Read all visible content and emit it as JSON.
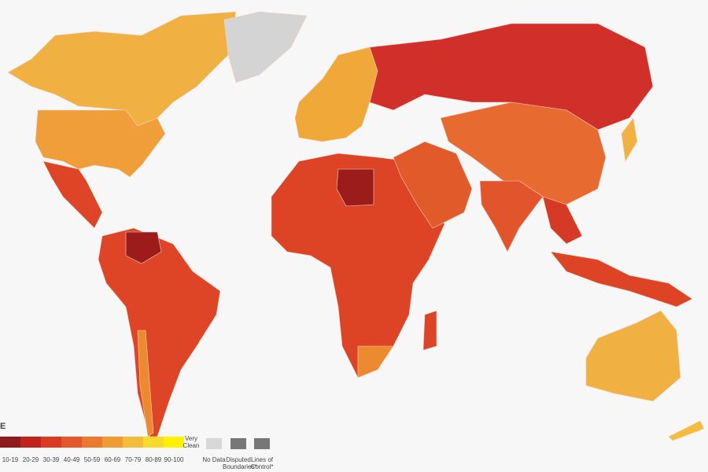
{
  "legend": {
    "title_fragment": "E",
    "bins": [
      {
        "label": "10-19",
        "color": "#8e1a1a"
      },
      {
        "label": "20-29",
        "color": "#c0221c"
      },
      {
        "label": "30-39",
        "color": "#d93a22"
      },
      {
        "label": "40-49",
        "color": "#e5562a"
      },
      {
        "label": "50-59",
        "color": "#ec7a2e"
      },
      {
        "label": "60-69",
        "color": "#f09c34"
      },
      {
        "label": "70-79",
        "color": "#f4bc3a"
      },
      {
        "label": "80-89",
        "color": "#f7da2c"
      },
      {
        "label": "90-100",
        "color": "#fff200"
      }
    ],
    "very_clean": "Very Clean",
    "no_data": "No Data",
    "disputed": "Disputed Boundaries*",
    "lines_of_control": "Lines of Control*"
  }
}
